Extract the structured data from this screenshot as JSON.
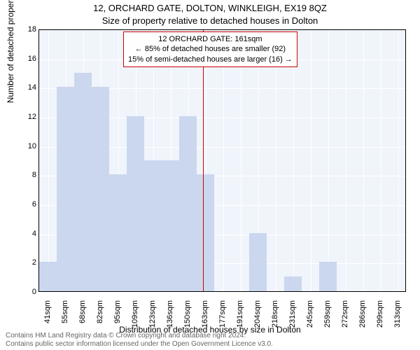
{
  "chart": {
    "type": "histogram",
    "title_line1": "12, ORCHARD GATE, DOLTON, WINKLEIGH, EX19 8QZ",
    "title_line2": "Size of property relative to detached houses in Dolton",
    "title_fontsize": 13,
    "ylabel": "Number of detached properties",
    "xlabel": "Distribution of detached houses by size in Dolton",
    "label_fontsize": 12,
    "tick_fontsize": 11,
    "ylim": [
      0,
      18
    ],
    "ytick_step": 2,
    "yticks": [
      0,
      2,
      4,
      6,
      8,
      10,
      12,
      14,
      16,
      18
    ],
    "background_color": "#f0f4fb",
    "grid_color": "#ffffff",
    "bar_color": "#cbd7ee",
    "marker_color": "#cc0000",
    "categories": [
      "41sqm",
      "55sqm",
      "68sqm",
      "82sqm",
      "95sqm",
      "109sqm",
      "123sqm",
      "136sqm",
      "150sqm",
      "163sqm",
      "177sqm",
      "191sqm",
      "204sqm",
      "218sqm",
      "231sqm",
      "245sqm",
      "259sqm",
      "272sqm",
      "286sqm",
      "299sqm",
      "313sqm"
    ],
    "values": [
      2,
      14,
      15,
      14,
      8,
      12,
      9,
      9,
      12,
      8,
      0,
      0,
      4,
      0,
      1,
      0,
      2,
      0,
      0,
      0,
      0
    ],
    "marker_position_index": 9,
    "annotation": {
      "line1": "12 ORCHARD GATE: 161sqm",
      "line2": "← 85% of detached houses are smaller (92)",
      "line3": "15% of semi-detached houses are larger (16) →"
    },
    "footer_line1": "Contains HM Land Registry data © Crown copyright and database right 2024.",
    "footer_line2": "Contains public sector information licensed under the Open Government Licence v3.0."
  }
}
